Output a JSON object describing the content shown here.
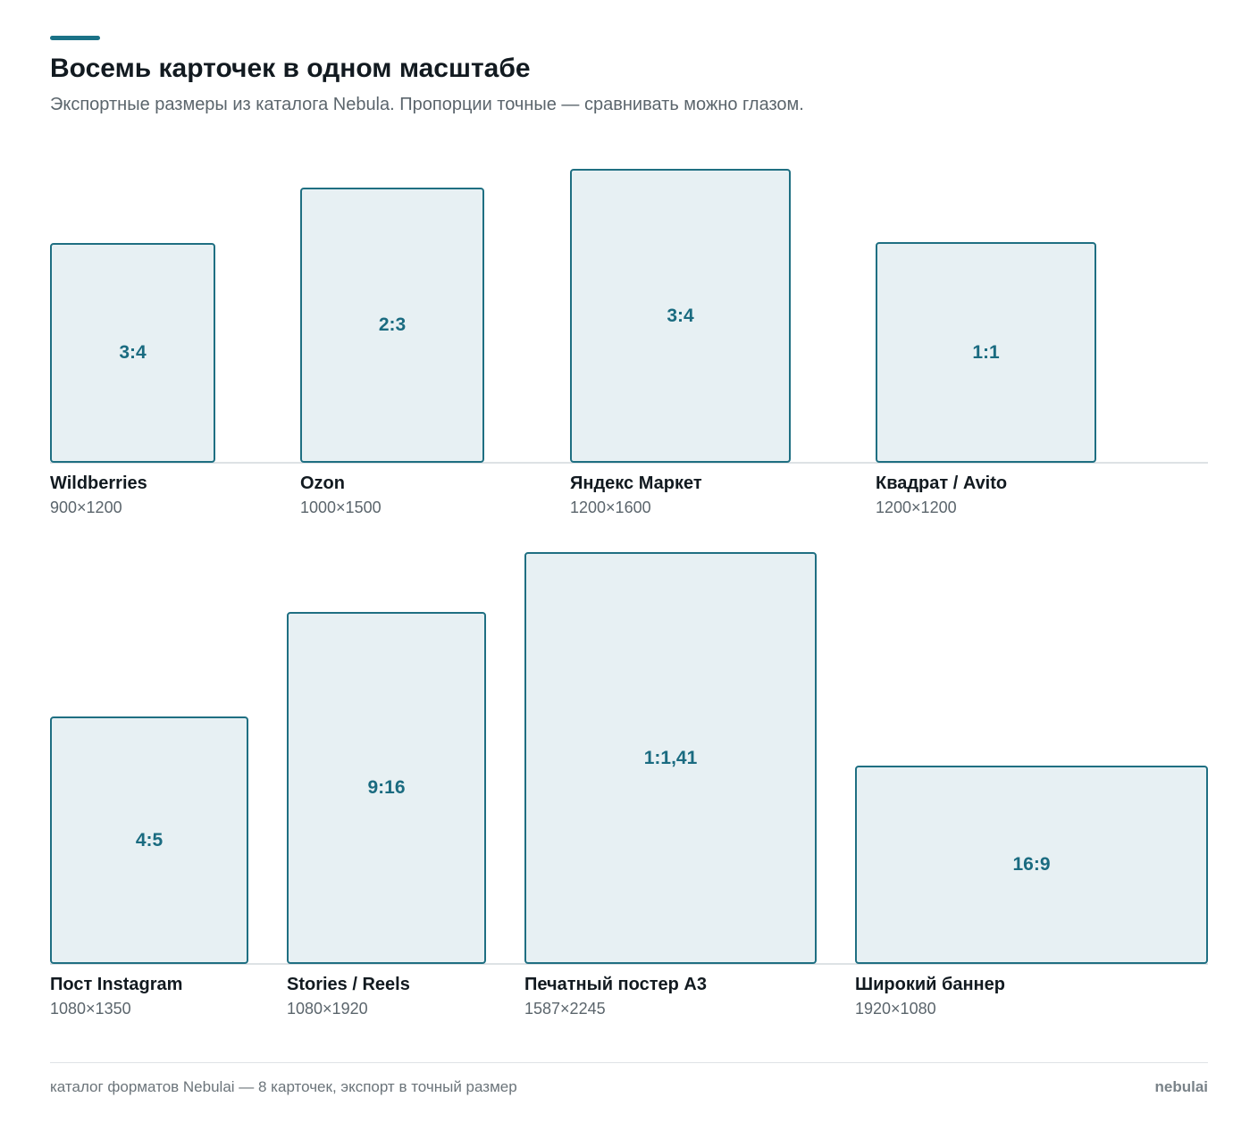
{
  "header": {
    "title": "Восемь карточек в одном масштабе",
    "subtitle": "Экспортные размеры из каталога Nebula. Пропорции точные — сравнивать можно глазом."
  },
  "cards": [
    {
      "name": "Wildberries",
      "dims": "900×1200",
      "ratio": "3:4"
    },
    {
      "name": "Ozon",
      "dims": "1000×1500",
      "ratio": "2:3"
    },
    {
      "name": "Яндекс Маркет",
      "dims": "1200×1600",
      "ratio": "3:4"
    },
    {
      "name": "Квадрат / Avito",
      "dims": "1200×1200",
      "ratio": "1:1"
    },
    {
      "name": "Пост Instagram",
      "dims": "1080×1350",
      "ratio": "4:5"
    },
    {
      "name": "Stories / Reels",
      "dims": "1080×1920",
      "ratio": "9:16"
    },
    {
      "name": "Печатный постер A3",
      "dims": "1587×2245",
      "ratio": "1:1,41"
    },
    {
      "name": "Широкий баннер",
      "dims": "1920×1080",
      "ratio": "16:9"
    }
  ],
  "footer": {
    "text": "каталог форматов Nebulai — 8 карточек, экспорт в точный размер",
    "brand": "nebulai"
  },
  "colors": {
    "accent": "#1a7287",
    "card_border": "#1f6f82",
    "card_fill": "#e7f0f3"
  }
}
